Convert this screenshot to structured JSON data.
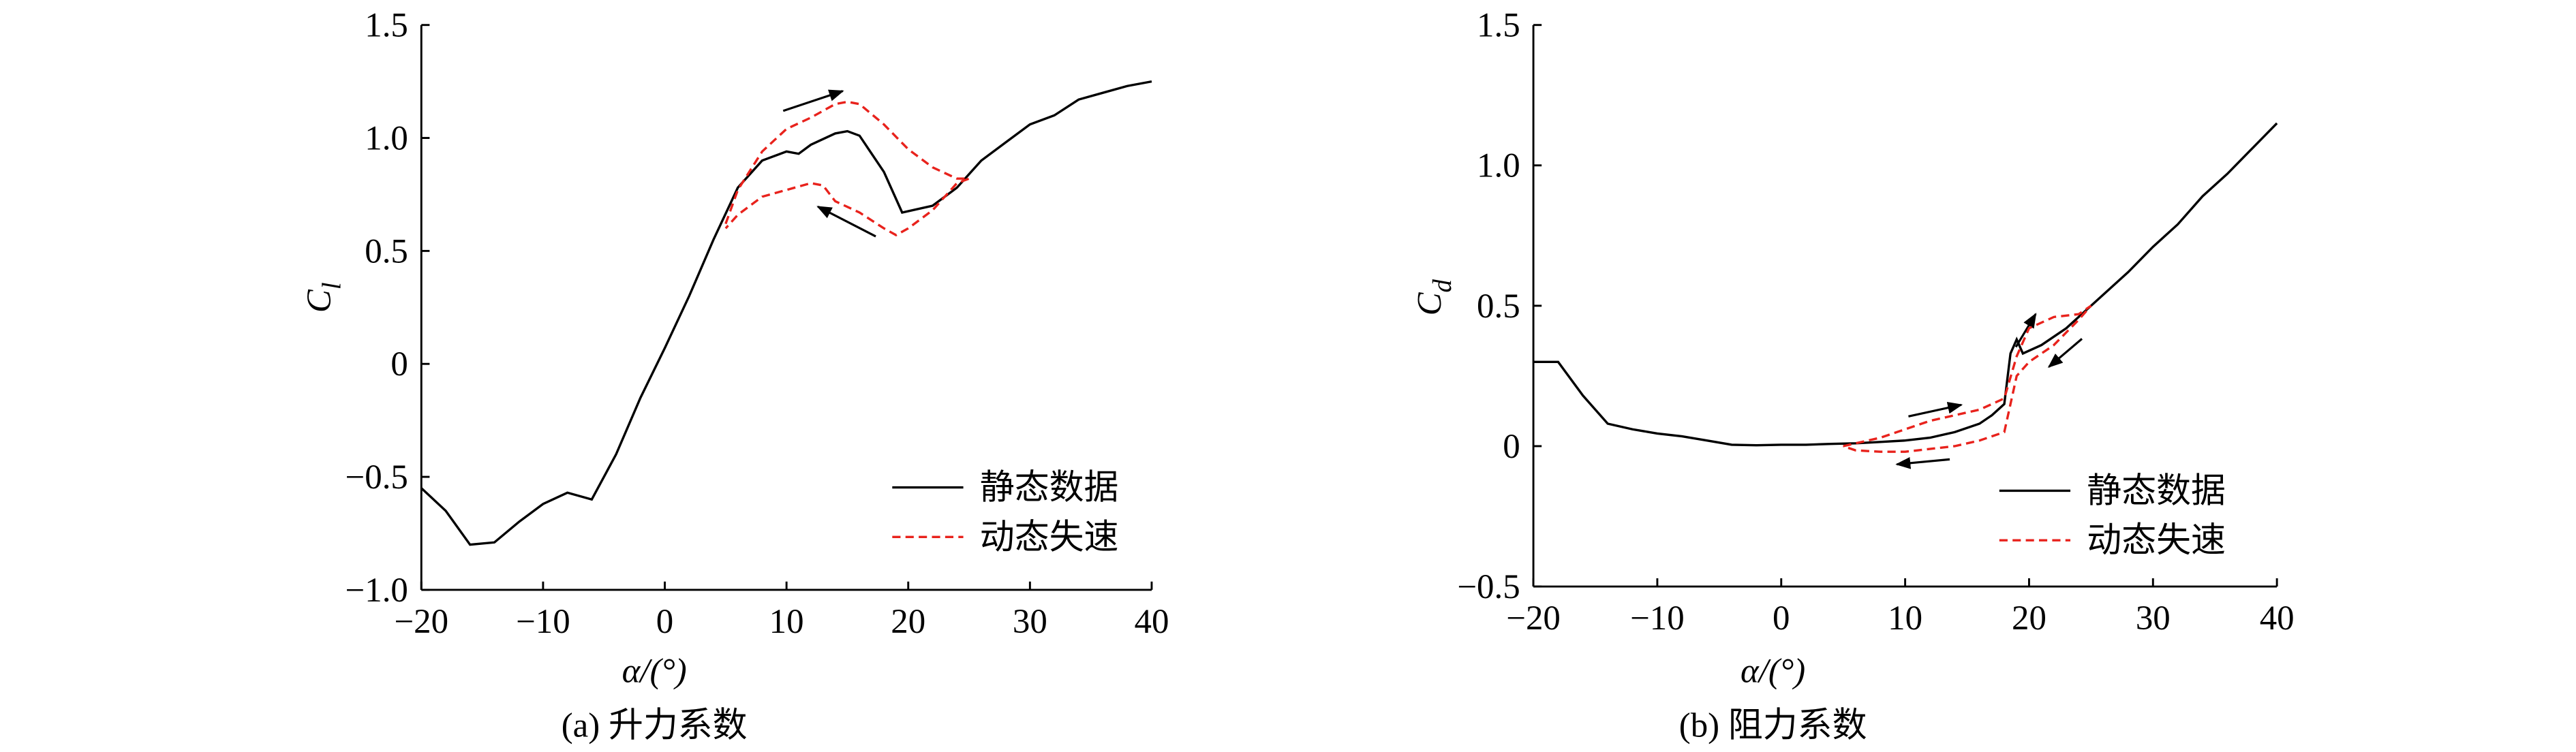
{
  "chart_data": [
    {
      "type": "line",
      "caption": "(a) 升力系数",
      "xlabel": "α/(°)",
      "ylabel_symbol": "C",
      "ylabel_subscript": "l",
      "xlim": [
        -20,
        40
      ],
      "ylim": [
        -1,
        1.5
      ],
      "xticks": [
        {
          "value": -20,
          "label": "−20"
        },
        {
          "value": -10,
          "label": "−10"
        },
        0,
        10,
        20,
        30,
        40
      ],
      "yticks": [
        {
          "value": -1,
          "label": "−1.0"
        },
        {
          "value": -0.5,
          "label": "−0.5"
        },
        0,
        0.5,
        {
          "value": 1,
          "label": "1.0"
        },
        1.5
      ],
      "series": [
        {
          "name": "静态数据",
          "color": "#000000",
          "dash": false,
          "x": [
            -20,
            -18,
            -16,
            -14,
            -12,
            -10,
            -8,
            -6,
            -4,
            -2,
            0,
            2,
            4,
            6,
            8,
            10,
            11,
            12,
            14,
            15,
            16,
            18,
            19.5,
            22,
            24,
            26,
            28,
            30,
            32,
            34,
            36,
            38,
            40
          ],
          "values": [
            -0.55,
            -0.65,
            -0.8,
            -0.79,
            -0.7,
            -0.62,
            -0.57,
            -0.6,
            -0.4,
            -0.15,
            0.07,
            0.3,
            0.55,
            0.78,
            0.9,
            0.94,
            0.93,
            0.97,
            1.02,
            1.03,
            1.01,
            0.85,
            0.67,
            0.7,
            0.78,
            0.9,
            0.98,
            1.06,
            1.1,
            1.17,
            1.2,
            1.23,
            1.25
          ]
        },
        {
          "name": "动态失速",
          "color": "#e8221c",
          "dash": true,
          "x": [
            5,
            6,
            8,
            10,
            12,
            14,
            15,
            16,
            18,
            20,
            22,
            24,
            25,
            24,
            22,
            20,
            19,
            18,
            16,
            14,
            13,
            12,
            10,
            8,
            6,
            5
          ],
          "values": [
            0.62,
            0.77,
            0.94,
            1.04,
            1.09,
            1.15,
            1.16,
            1.15,
            1.06,
            0.95,
            0.87,
            0.82,
            0.82,
            0.8,
            0.68,
            0.6,
            0.57,
            0.6,
            0.67,
            0.72,
            0.79,
            0.8,
            0.77,
            0.74,
            0.66,
            0.6
          ]
        }
      ]
    },
    {
      "type": "line",
      "caption": "(b) 阻力系数",
      "xlabel": "α/(°)",
      "ylabel_symbol": "C",
      "ylabel_subscript": "d",
      "xlim": [
        -20,
        40
      ],
      "ylim": [
        -0.5,
        1.5
      ],
      "xticks": [
        {
          "value": -20,
          "label": "−20"
        },
        {
          "value": -10,
          "label": "−10"
        },
        0,
        10,
        20,
        30,
        40
      ],
      "yticks": [
        {
          "value": -0.5,
          "label": "−0.5"
        },
        0,
        0.5,
        {
          "value": 1,
          "label": "1.0"
        },
        1.5
      ],
      "series": [
        {
          "name": "静态数据",
          "color": "#000000",
          "dash": false,
          "x": [
            -20,
            -18,
            -16,
            -14,
            -12,
            -10,
            -8,
            -6,
            -4,
            -2,
            0,
            2,
            4,
            6,
            8,
            10,
            12,
            14,
            16,
            17,
            18,
            18.5,
            19,
            19.5,
            21,
            23,
            25,
            26,
            28,
            30,
            32,
            34,
            36,
            38,
            40
          ],
          "values": [
            0.3,
            0.3,
            0.18,
            0.08,
            0.06,
            0.045,
            0.035,
            0.02,
            0.005,
            0.003,
            0.005,
            0.005,
            0.008,
            0.01,
            0.015,
            0.02,
            0.03,
            0.05,
            0.08,
            0.11,
            0.15,
            0.33,
            0.38,
            0.33,
            0.36,
            0.42,
            0.5,
            0.54,
            0.62,
            0.71,
            0.79,
            0.89,
            0.97,
            1.06,
            1.15
          ]
        },
        {
          "name": "动态失速",
          "color": "#e8221c",
          "dash": true,
          "x": [
            5,
            8,
            10,
            12,
            14,
            16,
            18,
            19,
            20,
            22,
            24,
            25,
            24,
            22,
            20,
            19,
            18,
            16,
            14,
            12,
            10,
            8,
            6,
            5
          ],
          "values": [
            0,
            0.03,
            0.06,
            0.09,
            0.11,
            0.13,
            0.17,
            0.32,
            0.42,
            0.46,
            0.47,
            0.5,
            0.45,
            0.36,
            0.3,
            0.25,
            0.05,
            0.02,
            0,
            -0.01,
            -0.02,
            -0.02,
            -0.015,
            0
          ]
        }
      ]
    }
  ]
}
